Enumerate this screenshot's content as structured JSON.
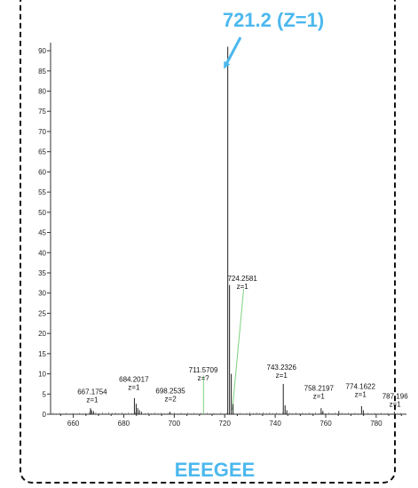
{
  "chart_data": {
    "type": "bar",
    "title": "",
    "xlabel": "",
    "ylabel": "",
    "xlim": [
      651,
      792
    ],
    "ylim": [
      0,
      92
    ],
    "x_ticks": [
      660,
      680,
      700,
      720,
      740,
      760,
      780
    ],
    "y_ticks": [
      0,
      5,
      10,
      15,
      20,
      25,
      30,
      35,
      40,
      45,
      50,
      55,
      60,
      65,
      70,
      75,
      80,
      85,
      90
    ],
    "y_tick_labels": [
      "0",
      "5",
      "10",
      "15",
      "20",
      "25",
      "30",
      "35",
      "40",
      "45",
      "50",
      "55",
      "60",
      "65",
      "70",
      "75",
      "80",
      "85",
      "90"
    ],
    "peaks": [
      {
        "mz": 666.8,
        "intensity": 1.5,
        "color": "#222222"
      },
      {
        "mz": 667.2,
        "intensity": 1.0,
        "color": "#222222"
      },
      {
        "mz": 668.0,
        "intensity": 0.8,
        "color": "#222222"
      },
      {
        "mz": 684.2,
        "intensity": 4.0,
        "color": "#222222"
      },
      {
        "mz": 684.9,
        "intensity": 2.6,
        "color": "#222222"
      },
      {
        "mz": 685.5,
        "intensity": 1.5,
        "color": "#222222"
      },
      {
        "mz": 686.2,
        "intensity": 1.0,
        "color": "#222222"
      },
      {
        "mz": 687.0,
        "intensity": 0.6,
        "color": "#222222"
      },
      {
        "mz": 698.3,
        "intensity": 0.6,
        "color": "#222222"
      },
      {
        "mz": 711.6,
        "intensity": 5.5,
        "color": "#7ed07e"
      },
      {
        "mz": 721.2,
        "intensity": 91.0,
        "color": "#222222"
      },
      {
        "mz": 721.9,
        "intensity": 32.0,
        "color": "#222222"
      },
      {
        "mz": 722.6,
        "intensity": 10.0,
        "color": "#222222"
      },
      {
        "mz": 723.3,
        "intensity": 2.5,
        "color": "#222222"
      },
      {
        "mz": 743.2,
        "intensity": 7.5,
        "color": "#222222"
      },
      {
        "mz": 743.9,
        "intensity": 2.2,
        "color": "#222222"
      },
      {
        "mz": 744.6,
        "intensity": 1.0,
        "color": "#222222"
      },
      {
        "mz": 758.2,
        "intensity": 1.5,
        "color": "#222222"
      },
      {
        "mz": 758.9,
        "intensity": 0.8,
        "color": "#222222"
      },
      {
        "mz": 765.2,
        "intensity": 0.8,
        "color": "#222222"
      },
      {
        "mz": 774.2,
        "intensity": 2.0,
        "color": "#222222"
      },
      {
        "mz": 774.9,
        "intensity": 1.0,
        "color": "#222222"
      },
      {
        "mz": 787.2,
        "intensity": 0.6,
        "color": "#222222"
      }
    ],
    "peak_labels": [
      {
        "mz": 667.1754,
        "z": "z=1",
        "at_mz": 667.5,
        "at_intensity": 5.0,
        "text": "667.1754"
      },
      {
        "mz": 684.2017,
        "z": "z=1",
        "at_mz": 684.0,
        "at_intensity": 8.0,
        "text": "684.2017"
      },
      {
        "mz": 698.2535,
        "z": "z=2",
        "at_mz": 698.5,
        "at_intensity": 5.2,
        "text": "698.2535"
      },
      {
        "mz": 711.5709,
        "z": "z=?",
        "at_mz": 711.5,
        "at_intensity": 10.3,
        "text": "711.5709"
      },
      {
        "mz": 724.2581,
        "z": "z=1",
        "at_mz": 727.0,
        "at_intensity": 33.0,
        "text": "724.2581"
      },
      {
        "mz": 743.2326,
        "z": "z=1",
        "at_mz": 742.5,
        "at_intensity": 11.0,
        "text": "743.2326"
      },
      {
        "mz": 758.2197,
        "z": "z=1",
        "at_mz": 757.3,
        "at_intensity": 5.8,
        "text": "758.2197"
      },
      {
        "mz": 774.1622,
        "z": "z=1",
        "at_mz": 773.8,
        "at_intensity": 6.3,
        "text": "774.1622"
      },
      {
        "mz": 787.196,
        "z": "z=1",
        "at_mz": 787.5,
        "at_intensity": 3.8,
        "text": "787.196"
      }
    ],
    "green_guides": [
      {
        "from_mz": 711.6,
        "from_intensity": 5.5,
        "to_mz": 711.6,
        "to_intensity": 9.6
      },
      {
        "from_mz": 723.0,
        "from_intensity": 1.0,
        "to_mz": 727.5,
        "to_intensity": 31.0
      }
    ],
    "callout": {
      "text": "721.2 (Z=1)",
      "color": "#4cb8ee",
      "points_to_mz": 721.2
    },
    "peptide": {
      "text": "EEEGEE",
      "color": "#4cb8ee"
    }
  }
}
